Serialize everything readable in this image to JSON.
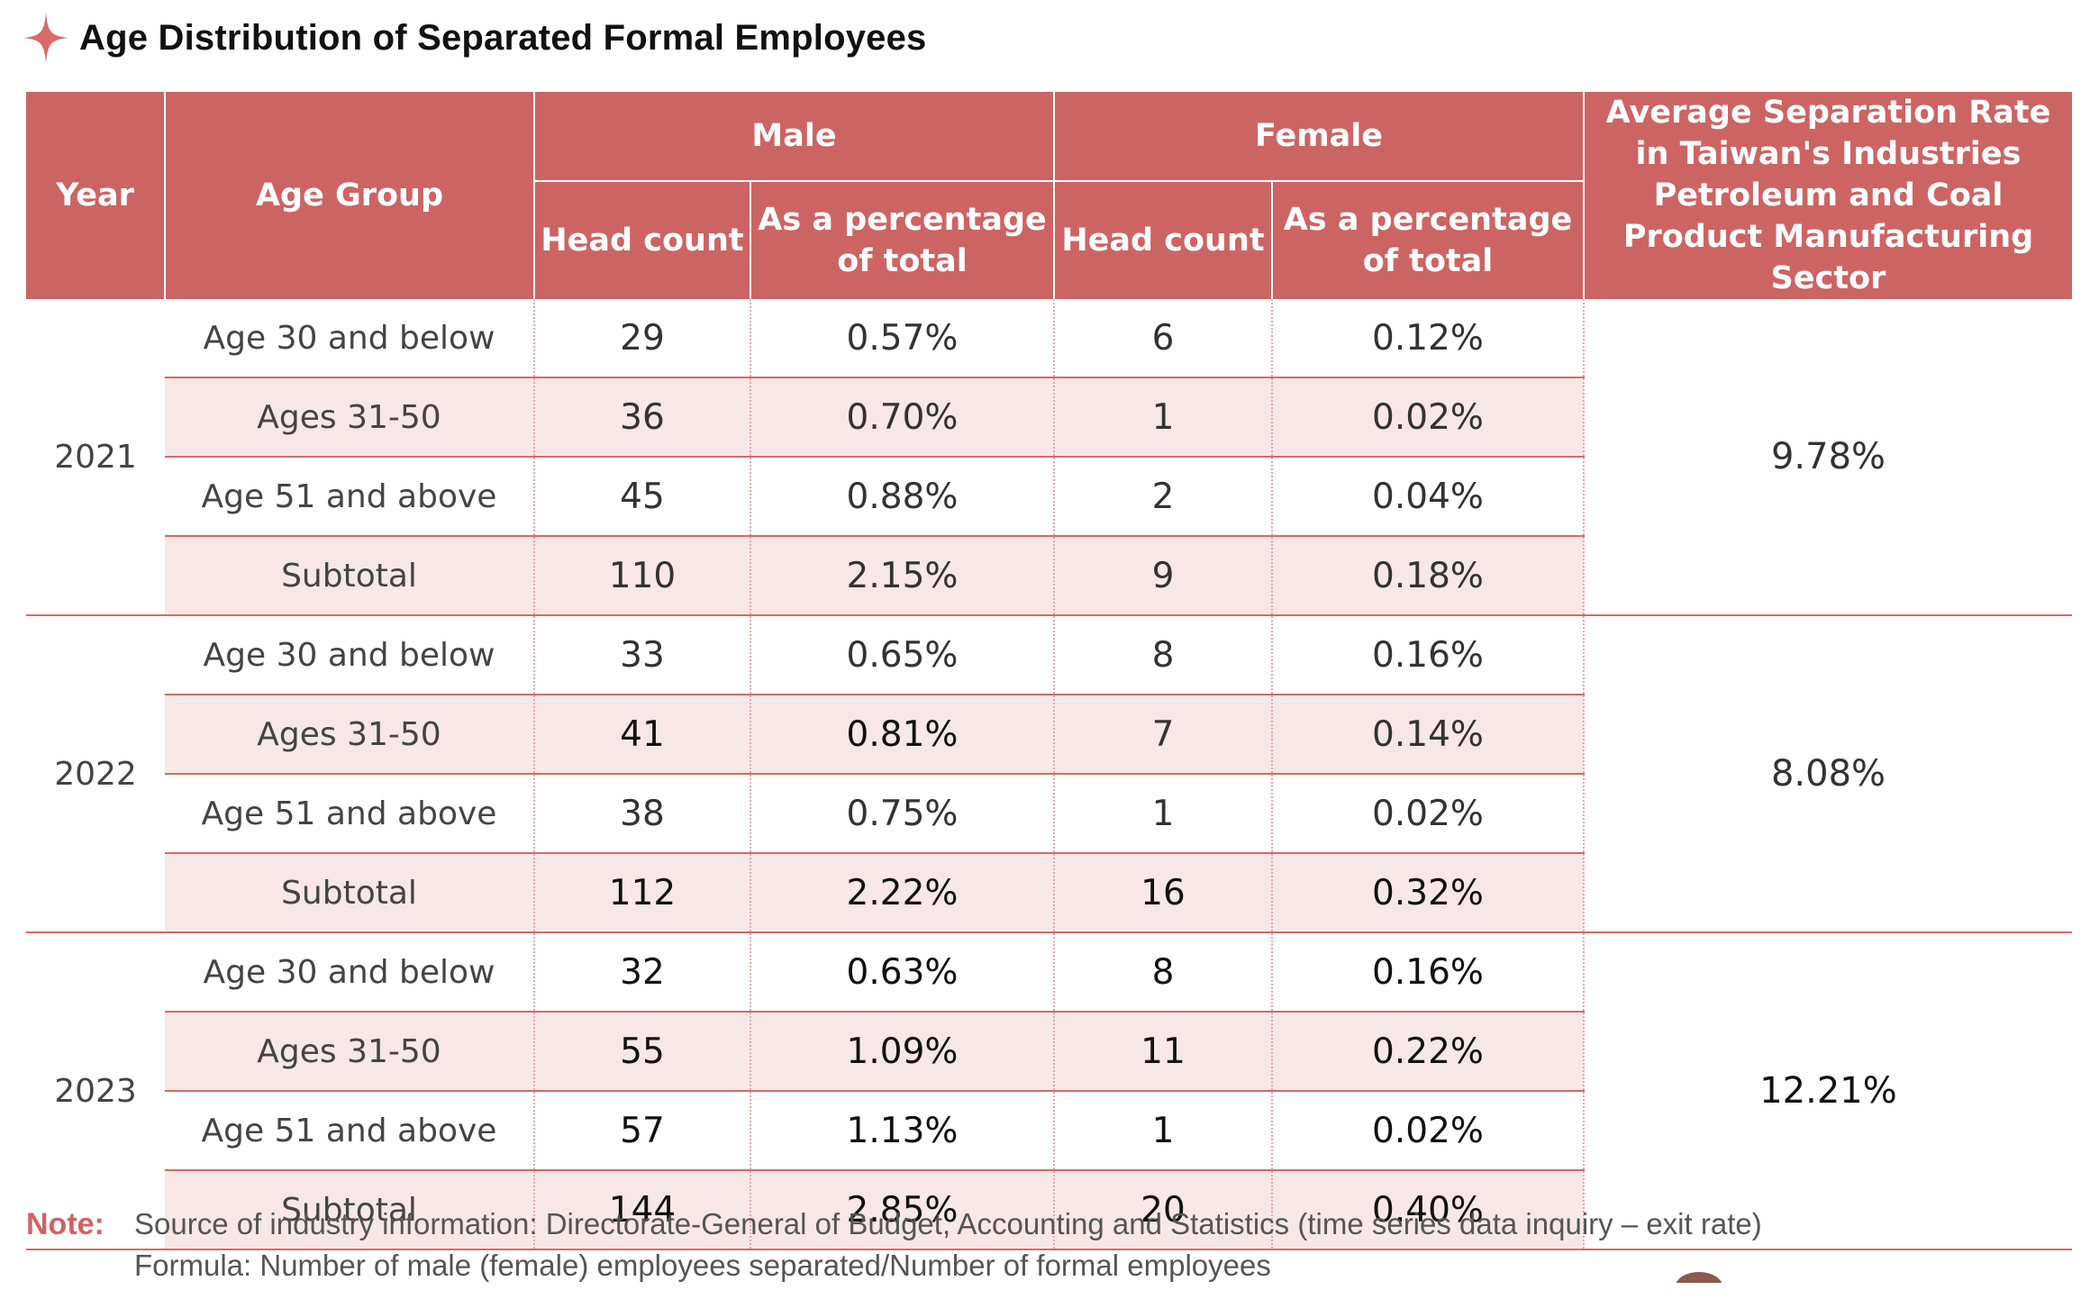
{
  "title": "Age Distribution of Separated Formal Employees",
  "colors": {
    "header_bg": "#cd6464",
    "row_shade": "#f7e8e7",
    "accent": "#d46a68"
  },
  "header": {
    "year": "Year",
    "age_group": "Age Group",
    "male": "Male",
    "female": "Female",
    "head_count": "Head count",
    "percentage": "As a percentage of total",
    "average": "Average Separation Rate in Taiwan's Industries Petroleum and Coal Product Manufacturing Sector"
  },
  "years": [
    {
      "year": "2021",
      "average": "9.78%",
      "rows": [
        {
          "age": "Age 30 and below",
          "male_count": "29",
          "male_pct": "0.57%",
          "female_count": "6",
          "female_pct": "0.12%"
        },
        {
          "age": "Ages 31-50",
          "male_count": "36",
          "male_pct": "0.70%",
          "female_count": "1",
          "female_pct": "0.02%"
        },
        {
          "age": "Age 51 and above",
          "male_count": "45",
          "male_pct": "0.88%",
          "female_count": "2",
          "female_pct": "0.04%"
        },
        {
          "age": "Subtotal",
          "male_count": "110",
          "male_pct": "2.15%",
          "female_count": "9",
          "female_pct": "0.18%"
        }
      ]
    },
    {
      "year": "2022",
      "average": "8.08%",
      "rows": [
        {
          "age": "Age 30 and below",
          "male_count": "33",
          "male_pct": "0.65%",
          "female_count": "8",
          "female_pct": "0.16%"
        },
        {
          "age": "Ages 31-50",
          "male_count": "41",
          "male_pct": "0.81%",
          "female_count": "7",
          "female_pct": "0.14%"
        },
        {
          "age": "Age 51 and above",
          "male_count": "38",
          "male_pct": "0.75%",
          "female_count": "1",
          "female_pct": "0.02%"
        },
        {
          "age": "Subtotal",
          "male_count": "112",
          "male_pct": "2.22%",
          "female_count": "16",
          "female_pct": "0.32%"
        }
      ]
    },
    {
      "year": "2023",
      "average": "12.21%",
      "rows": [
        {
          "age": "Age 30 and below",
          "male_count": "32",
          "male_pct": "0.63%",
          "female_count": "8",
          "female_pct": "0.16%"
        },
        {
          "age": "Ages 31-50",
          "male_count": "55",
          "male_pct": "1.09%",
          "female_count": "11",
          "female_pct": "0.22%"
        },
        {
          "age": "Age 51 and above",
          "male_count": "57",
          "male_pct": "1.13%",
          "female_count": "1",
          "female_pct": "0.02%"
        },
        {
          "age": "Subtotal",
          "male_count": "144",
          "male_pct": "2.85%",
          "female_count": "20",
          "female_pct": "0.40%"
        }
      ]
    }
  ],
  "note": {
    "label": "Note:",
    "lines": [
      "Source of industry information: Directorate-General of Budget, Accounting and Statistics (time series data inquiry – exit rate)",
      "Formula: Number of male (female) employees separated/Number of formal employees"
    ]
  }
}
